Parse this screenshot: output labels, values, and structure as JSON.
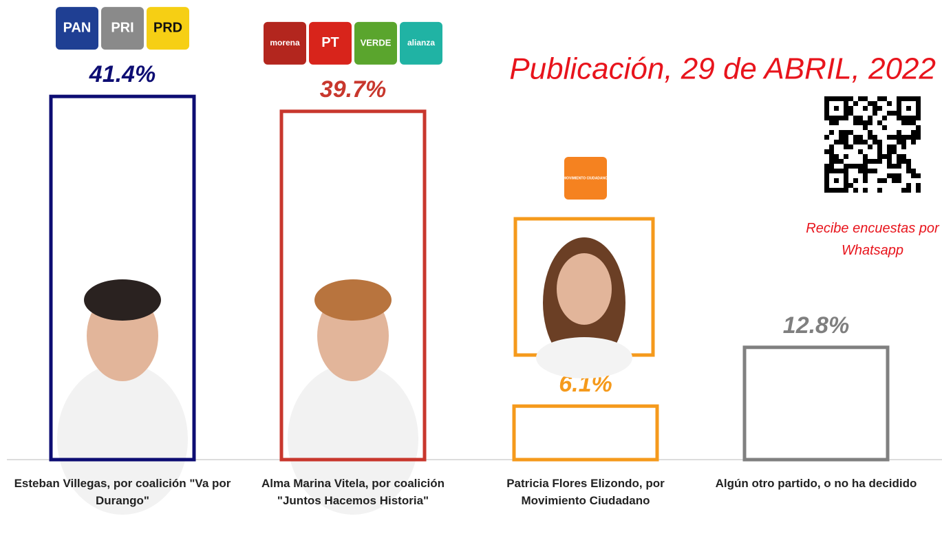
{
  "chart_data": {
    "type": "bar",
    "title": "Publicación, 29 de ABRIL, 2022",
    "annotation": "Recibe encuestas por Whatsapp",
    "categories": [
      "Esteban Villegas, por coalición \"Va por Durango\"",
      "Alma Marina Vitela, por coalición \"Juntos Hacemos Historia\"",
      "Patricia Flores Elizondo, por Movimiento Ciudadano",
      "Algún otro partido, o no ha decidido"
    ],
    "values": [
      41.4,
      39.7,
      6.1,
      12.8
    ],
    "value_labels": [
      "41.4%",
      "39.7%",
      "6.1%",
      "12.8%"
    ],
    "colors": [
      "#0d0d73",
      "#c8372d",
      "#f59a1c",
      "#808080"
    ],
    "party_logos": [
      [
        {
          "text": "PAN",
          "color": "#1f3f93"
        },
        {
          "text": "PRI",
          "color": "#8a8a8a"
        },
        {
          "text": "PRD",
          "color": "#f6cf14"
        }
      ],
      [
        {
          "text": "morena",
          "color": "#b3261e"
        },
        {
          "text": "PT",
          "color": "#d8241b"
        },
        {
          "text": "VERDE",
          "color": "#5aa52d"
        },
        {
          "text": "alianza",
          "color": "#20b3a4"
        }
      ],
      [
        {
          "text": "MOVIMIENTO CIUDADANO",
          "color": "#f58220"
        }
      ],
      []
    ]
  }
}
